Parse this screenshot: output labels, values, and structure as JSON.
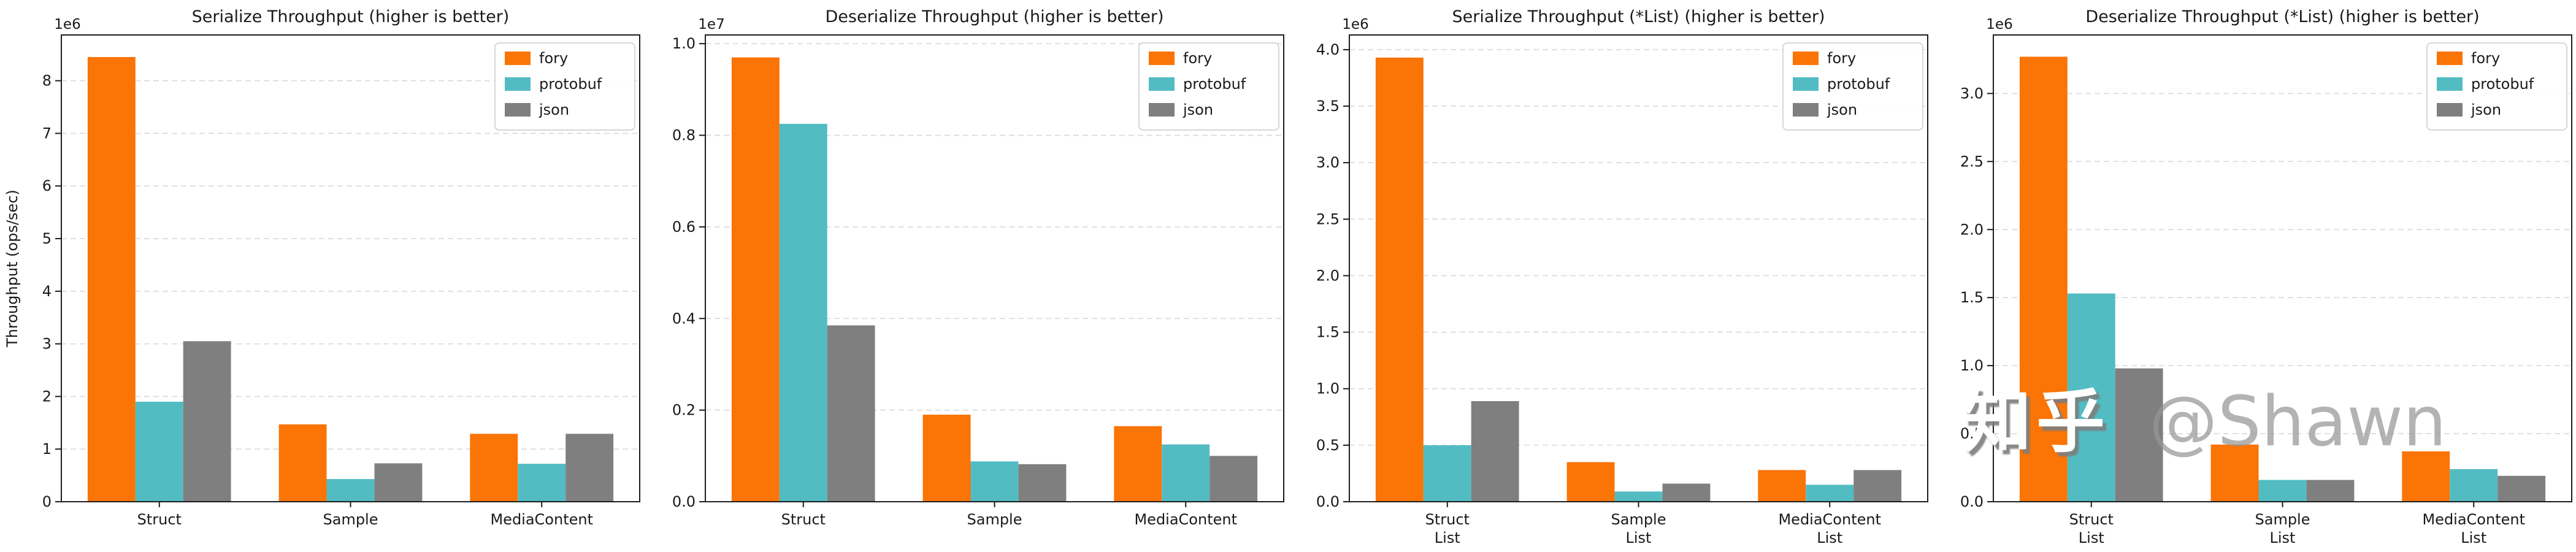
{
  "watermark": {
    "brand": "知乎",
    "handle": "@Shawn"
  },
  "colors": {
    "fory": "#fa7406",
    "protobuf": "#52bcc2",
    "json": "#7f7f7f"
  },
  "series_names": [
    "fory",
    "protobuf",
    "json"
  ],
  "chart_data": [
    {
      "type": "bar",
      "title": "Serialize Throughput (higher is better)",
      "ylabel": "Throughput (ops/sec)",
      "offset_text": "1e6",
      "grid": "horizontal-dashed",
      "legend": [
        "fory",
        "protobuf",
        "json"
      ],
      "legend_position": "upper right",
      "categories": [
        "Struct",
        "Sample",
        "MediaContent"
      ],
      "series": [
        {
          "name": "fory",
          "values": [
            8450000,
            1470000,
            1290000
          ]
        },
        {
          "name": "protobuf",
          "values": [
            1900000,
            430000,
            720000
          ]
        },
        {
          "name": "json",
          "values": [
            3050000,
            730000,
            1290000
          ]
        }
      ],
      "ylim": [
        0,
        8870000
      ],
      "ytick_values": [
        0,
        1000000,
        2000000,
        3000000,
        4000000,
        5000000,
        6000000,
        7000000,
        8000000
      ],
      "ytick_labels": [
        "0",
        "1",
        "2",
        "3",
        "4",
        "5",
        "6",
        "7",
        "8"
      ]
    },
    {
      "type": "bar",
      "title": "Deserialize Throughput (higher is better)",
      "ylabel": "",
      "offset_text": "1e7",
      "grid": "horizontal-dashed",
      "legend": [
        "fory",
        "protobuf",
        "json"
      ],
      "legend_position": "upper right",
      "categories": [
        "Struct",
        "Sample",
        "MediaContent"
      ],
      "series": [
        {
          "name": "fory",
          "values": [
            9700000,
            1900000,
            1650000
          ]
        },
        {
          "name": "protobuf",
          "values": [
            8250000,
            880000,
            1250000
          ]
        },
        {
          "name": "json",
          "values": [
            3850000,
            820000,
            1000000
          ]
        }
      ],
      "ylim": [
        0,
        10190000
      ],
      "ytick_values": [
        0,
        2000000,
        4000000,
        6000000,
        8000000,
        10000000
      ],
      "ytick_labels": [
        "0.0",
        "0.2",
        "0.4",
        "0.6",
        "0.8",
        "1.0"
      ]
    },
    {
      "type": "bar",
      "title": "Serialize Throughput (*List) (higher is better)",
      "ylabel": "",
      "offset_text": "1e6",
      "grid": "horizontal-dashed",
      "legend": [
        "fory",
        "protobuf",
        "json"
      ],
      "legend_position": "upper right",
      "categories": [
        "Struct\nList",
        "Sample\nList",
        "MediaContent\nList"
      ],
      "series": [
        {
          "name": "fory",
          "values": [
            3930000,
            350000,
            280000
          ]
        },
        {
          "name": "protobuf",
          "values": [
            500000,
            90000,
            150000
          ]
        },
        {
          "name": "json",
          "values": [
            890000,
            160000,
            280000
          ]
        }
      ],
      "ylim": [
        0,
        4130000
      ],
      "ytick_values": [
        0,
        500000,
        1000000,
        1500000,
        2000000,
        2500000,
        3000000,
        3500000,
        4000000
      ],
      "ytick_labels": [
        "0.0",
        "0.5",
        "1.0",
        "1.5",
        "2.0",
        "2.5",
        "3.0",
        "3.5",
        "4.0"
      ]
    },
    {
      "type": "bar",
      "title": "Deserialize Throughput (*List) (higher is better)",
      "ylabel": "",
      "offset_text": "1e6",
      "grid": "horizontal-dashed",
      "legend": [
        "fory",
        "protobuf",
        "json"
      ],
      "legend_position": "upper right",
      "categories": [
        "Struct\nList",
        "Sample\nList",
        "MediaContent\nList"
      ],
      "series": [
        {
          "name": "fory",
          "values": [
            3270000,
            420000,
            370000
          ]
        },
        {
          "name": "protobuf",
          "values": [
            1530000,
            160000,
            240000
          ]
        },
        {
          "name": "json",
          "values": [
            980000,
            160000,
            190000
          ]
        }
      ],
      "ylim": [
        0,
        3430000
      ],
      "ytick_values": [
        0,
        500000,
        1000000,
        1500000,
        2000000,
        2500000,
        3000000
      ],
      "ytick_labels": [
        "0.0",
        "0.5",
        "1.0",
        "1.5",
        "2.0",
        "2.5",
        "3.0"
      ]
    }
  ]
}
